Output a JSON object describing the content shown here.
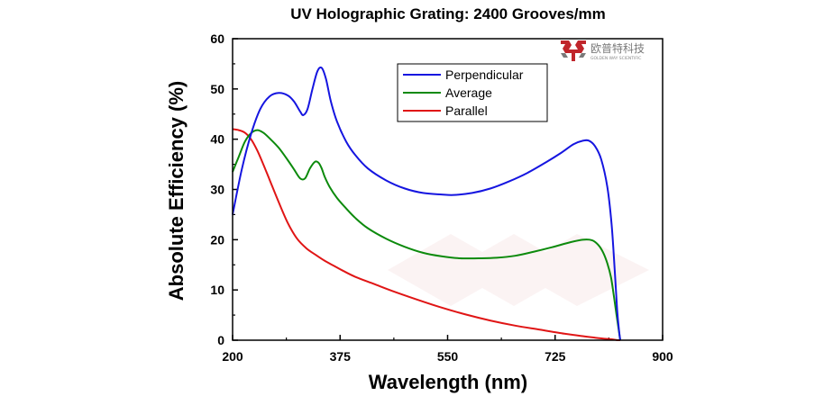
{
  "chart_data": {
    "type": "line",
    "title": "UV Holographic Grating: 2400 Grooves/mm",
    "xlabel": "Wavelength (nm)",
    "ylabel": "Absolute Efficiency (%)",
    "xlim": [
      200,
      900
    ],
    "ylim": [
      0,
      60
    ],
    "xticks": [
      200,
      375,
      550,
      725,
      900
    ],
    "yticks": [
      0,
      10,
      20,
      30,
      40,
      50,
      60
    ],
    "grid": false,
    "legend_position": "top-right",
    "series": [
      {
        "name": "Perpendicular",
        "color": "#1515e0",
        "x": [
          200,
          215,
          230,
          245,
          260,
          275,
          290,
          300,
          310,
          315,
          322,
          330,
          338,
          345,
          352,
          360,
          370,
          385,
          400,
          420,
          450,
          480,
          510,
          540,
          560,
          590,
          620,
          650,
          680,
          710,
          735,
          755,
          770,
          780,
          790,
          800,
          810,
          817,
          822,
          826,
          829,
          831
        ],
        "y": [
          25,
          34,
          41,
          46,
          48.5,
          49.2,
          48.7,
          47.5,
          45.5,
          44.8,
          46,
          50,
          53.5,
          54.2,
          52,
          47.5,
          43.5,
          39.5,
          36.8,
          34.2,
          31.8,
          30.2,
          29.3,
          29,
          28.9,
          29.3,
          30.2,
          31.6,
          33.3,
          35.4,
          37.3,
          39,
          39.7,
          39.7,
          38.6,
          36,
          30.5,
          23,
          14,
          6,
          2,
          0
        ]
      },
      {
        "name": "Average",
        "color": "#0c8a0c",
        "x": [
          200,
          210,
          220,
          230,
          240,
          250,
          260,
          275,
          290,
          300,
          310,
          318,
          326,
          334,
          340,
          345,
          350,
          358,
          370,
          385,
          400,
          420,
          450,
          480,
          510,
          540,
          570,
          600,
          630,
          660,
          690,
          720,
          750,
          770,
          785,
          795,
          803,
          810,
          816,
          821,
          825,
          828,
          831
        ],
        "y": [
          33.5,
          36.5,
          39.5,
          41.2,
          41.8,
          41.3,
          40.2,
          38.3,
          35.8,
          34,
          32.2,
          32.2,
          34.2,
          35.5,
          35.3,
          34.2,
          32.5,
          30.5,
          28.3,
          26.2,
          24.3,
          22.3,
          20.2,
          18.6,
          17.4,
          16.7,
          16.3,
          16.3,
          16.4,
          16.8,
          17.6,
          18.5,
          19.5,
          20,
          19.9,
          19,
          17.5,
          15.3,
          12.5,
          8.5,
          5,
          2.5,
          0
        ]
      },
      {
        "name": "Parallel",
        "color": "#e01515",
        "x": [
          200,
          210,
          220,
          230,
          240,
          250,
          260,
          275,
          290,
          305,
          320,
          335,
          350,
          365,
          380,
          400,
          430,
          460,
          500,
          540,
          580,
          620,
          660,
          700,
          740,
          770,
          790,
          805,
          815,
          822,
          827,
          831
        ],
        "y": [
          42,
          41.8,
          41.3,
          40,
          37.8,
          35,
          32,
          27.5,
          23.3,
          20.2,
          18.3,
          17,
          15.8,
          14.8,
          13.8,
          12.6,
          11.2,
          9.8,
          8.1,
          6.5,
          5.1,
          3.9,
          2.9,
          2.1,
          1.3,
          0.8,
          0.5,
          0.3,
          0.2,
          0.1,
          0,
          0
        ]
      }
    ]
  },
  "logo": {
    "cn_text": "欧普特科技",
    "en_text": "GOLDEN WAY SCIENTIFIC",
    "brand_color": "#c0252b"
  }
}
